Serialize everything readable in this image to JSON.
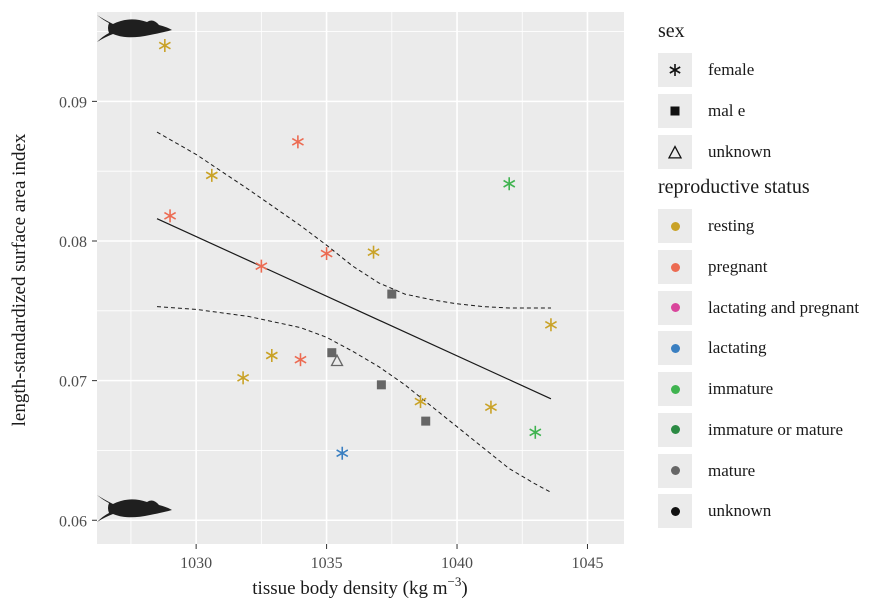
{
  "chart_data": {
    "type": "scatter",
    "xlabel_main": "tissue body density (kg m",
    "xlabel_exp": "−3",
    "xlabel_close": ")",
    "ylabel": "length-standardized surface area index",
    "xlim": [
      1026.2,
      1046.4
    ],
    "ylim": [
      0.0583,
      0.0964
    ],
    "xticks": [
      1030,
      1035,
      1040,
      1045
    ],
    "yticks": [
      0.06,
      0.07,
      0.08,
      0.09
    ],
    "xtick_labels": [
      "1030",
      "1035",
      "1040",
      "1045"
    ],
    "ytick_labels": [
      "0.06",
      "0.07",
      "0.08",
      "0.09"
    ],
    "grid": true,
    "legend_position": "right",
    "points": [
      {
        "x": 1028.8,
        "y": 0.094,
        "sex": "female",
        "status": "resting"
      },
      {
        "x": 1030.6,
        "y": 0.0847,
        "sex": "female",
        "status": "resting"
      },
      {
        "x": 1031.8,
        "y": 0.0702,
        "sex": "female",
        "status": "resting"
      },
      {
        "x": 1032.9,
        "y": 0.0718,
        "sex": "female",
        "status": "resting"
      },
      {
        "x": 1036.8,
        "y": 0.0792,
        "sex": "female",
        "status": "resting"
      },
      {
        "x": 1038.6,
        "y": 0.0685,
        "sex": "female",
        "status": "resting"
      },
      {
        "x": 1041.3,
        "y": 0.0681,
        "sex": "female",
        "status": "resting"
      },
      {
        "x": 1043.6,
        "y": 0.074,
        "sex": "female",
        "status": "resting"
      },
      {
        "x": 1029.0,
        "y": 0.0818,
        "sex": "female",
        "status": "pregnant"
      },
      {
        "x": 1032.5,
        "y": 0.0782,
        "sex": "female",
        "status": "pregnant"
      },
      {
        "x": 1033.9,
        "y": 0.0871,
        "sex": "female",
        "status": "pregnant"
      },
      {
        "x": 1034.0,
        "y": 0.0715,
        "sex": "female",
        "status": "pregnant"
      },
      {
        "x": 1035.0,
        "y": 0.0791,
        "sex": "female",
        "status": "pregnant"
      },
      {
        "x": 1035.6,
        "y": 0.0648,
        "sex": "female",
        "status": "lactating"
      },
      {
        "x": 1042.0,
        "y": 0.0841,
        "sex": "female",
        "status": "immature"
      },
      {
        "x": 1043.0,
        "y": 0.0663,
        "sex": "female",
        "status": "immature"
      },
      {
        "x": 1035.2,
        "y": 0.072,
        "sex": "male",
        "status": "mature"
      },
      {
        "x": 1037.1,
        "y": 0.0697,
        "sex": "male",
        "status": "mature"
      },
      {
        "x": 1037.5,
        "y": 0.0762,
        "sex": "male",
        "status": "mature"
      },
      {
        "x": 1038.8,
        "y": 0.0671,
        "sex": "male",
        "status": "mature"
      },
      {
        "x": 1035.4,
        "y": 0.0714,
        "sex": "unknown",
        "status": "mature"
      }
    ],
    "fit_line": {
      "x": [
        1028.5,
        1043.6
      ],
      "y": [
        0.0816,
        0.0687
      ]
    },
    "ci_upper": {
      "x": [
        1028.5,
        1030,
        1032,
        1034,
        1035,
        1036,
        1037,
        1038,
        1039,
        1040,
        1041,
        1042,
        1043,
        1043.6
      ],
      "y": [
        0.0878,
        0.0862,
        0.0837,
        0.0811,
        0.0797,
        0.0782,
        0.077,
        0.0762,
        0.0758,
        0.0755,
        0.0753,
        0.0752,
        0.0752,
        0.0752
      ]
    },
    "ci_lower": {
      "x": [
        1028.5,
        1030,
        1032,
        1034,
        1035,
        1036,
        1037,
        1038,
        1039,
        1040,
        1041,
        1042,
        1043,
        1043.6
      ],
      "y": [
        0.0753,
        0.0751,
        0.0746,
        0.0738,
        0.0731,
        0.0721,
        0.071,
        0.0697,
        0.0682,
        0.0667,
        0.0652,
        0.0637,
        0.0626,
        0.062
      ]
    }
  },
  "legend": {
    "sex_title": "sex",
    "sex_items": [
      {
        "label": "female",
        "shape": "asterisk"
      },
      {
        "label": "mal e",
        "shape": "square"
      },
      {
        "label": "unknown",
        "shape": "triangle"
      }
    ],
    "status_title": "reproductive status",
    "status_items": [
      {
        "label": "resting",
        "color": "#c9a227"
      },
      {
        "label": "pregnant",
        "color": "#ec6b52"
      },
      {
        "label": "lactating and pregnant",
        "color": "#d9469c"
      },
      {
        "label": "lactating",
        "color": "#3a7fc1"
      },
      {
        "label": "immature",
        "color": "#3fb34f"
      },
      {
        "label": "immature or mature",
        "color": "#2b8a43"
      },
      {
        "label": "mature",
        "color": "#666666"
      },
      {
        "label": "unknown",
        "color": "#111111"
      }
    ]
  },
  "colors": {
    "panel_bg": "#ebebeb",
    "grid": "#ffffff",
    "whale": "#1f1f1f"
  },
  "icons": [
    "whale-icon"
  ]
}
